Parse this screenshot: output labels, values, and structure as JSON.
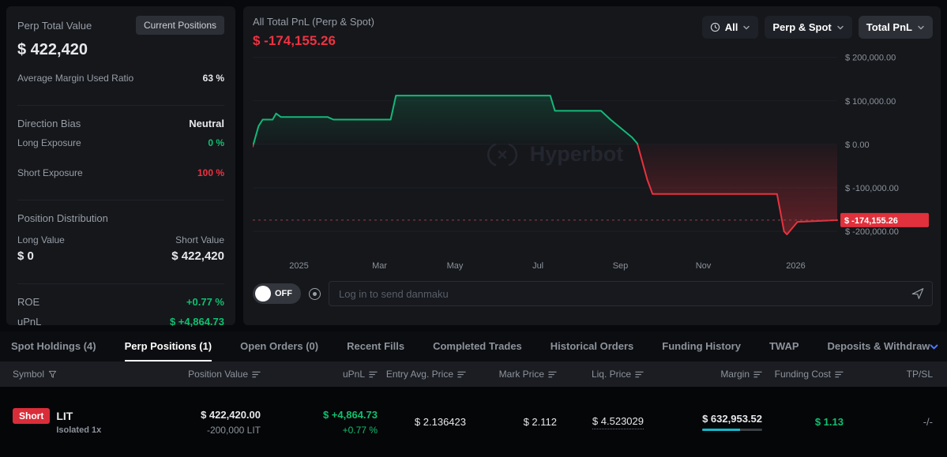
{
  "colors": {
    "accent_cyan": "#15b8ca",
    "negative_red": "#ef3241",
    "positive_green": "#0fc06f",
    "badge_red": "#d92d3a",
    "tabs_chevron_blue": "#4d7cfe"
  },
  "left_panel": {
    "title": "Perp Total Value",
    "current_positions_button": "Current Positions",
    "total_value": "$ 422,420",
    "avg_margin_label": "Average Margin Used Ratio",
    "avg_margin_value": "63 %",
    "avg_margin_pct": 63,
    "direction_bias_label": "Direction Bias",
    "direction_bias_value": "Neutral",
    "long_exposure_label": "Long Exposure",
    "long_exposure_value": "0 %",
    "long_exposure_pct": 0,
    "short_exposure_label": "Short Exposure",
    "short_exposure_value": "100 %",
    "short_exposure_pct": 100,
    "position_distribution_label": "Position Distribution",
    "long_value_label": "Long Value",
    "short_value_label": "Short Value",
    "long_value": "$ 0",
    "short_value": "$ 422,420",
    "distribution_short_pct": 100,
    "roe_label": "ROE",
    "roe_value": "+0.77 %",
    "upnl_label": "uPnL",
    "upnl_value": "$ +4,864.73"
  },
  "chart_panel": {
    "title": "All Total PnL (Perp & Spot)",
    "pnl_value": "$ -174,155.26",
    "controls": {
      "time": "All",
      "scope": "Perp & Spot",
      "metric": "Total PnL"
    },
    "watermark": "Hyperbot",
    "danmaku_toggle": "OFF",
    "danmaku_placeholder": "Log in to send danmaku"
  },
  "chart_data": {
    "type": "area",
    "title": "All Total PnL (Perp & Spot)",
    "legend": false,
    "grid": true,
    "current_value": -174155.26,
    "current_label": "$ -174,155.26",
    "ylim": [
      -245000,
      212000
    ],
    "y_ticks": [
      {
        "v": 200000,
        "label": "$ 200,000.00"
      },
      {
        "v": 100000,
        "label": "$ 100,000.00"
      },
      {
        "v": 0,
        "label": "$ 0.00"
      },
      {
        "v": -100000,
        "label": "$ -100,000.00"
      },
      {
        "v": -200000,
        "label": "$ -200,000.00"
      }
    ],
    "x_ticks": [
      {
        "f": 0.079,
        "label": "2025"
      },
      {
        "f": 0.217,
        "label": "Mar"
      },
      {
        "f": 0.346,
        "label": "May"
      },
      {
        "f": 0.488,
        "label": "Jul"
      },
      {
        "f": 0.629,
        "label": "Sep"
      },
      {
        "f": 0.771,
        "label": "Nov"
      },
      {
        "f": 0.929,
        "label": "2026"
      }
    ],
    "points": [
      [
        0.0,
        -5000
      ],
      [
        0.01,
        42000
      ],
      [
        0.017,
        57000
      ],
      [
        0.034,
        57000
      ],
      [
        0.04,
        71000
      ],
      [
        0.048,
        63000
      ],
      [
        0.128,
        63000
      ],
      [
        0.138,
        57000
      ],
      [
        0.236,
        57000
      ],
      [
        0.245,
        112000
      ],
      [
        0.509,
        112000
      ],
      [
        0.517,
        77000
      ],
      [
        0.596,
        77000
      ],
      [
        0.612,
        57000
      ],
      [
        0.649,
        16000
      ],
      [
        0.658,
        2000
      ],
      [
        0.675,
        -81000
      ],
      [
        0.684,
        -114000
      ],
      [
        0.897,
        -114000
      ],
      [
        0.909,
        -200000
      ],
      [
        0.914,
        -207000
      ],
      [
        0.932,
        -178000
      ],
      [
        1.0,
        -174155.26
      ]
    ],
    "colors": {
      "line_pos": "#14b877",
      "line_neg": "#e8323e"
    }
  },
  "tabs": {
    "active_index": 1,
    "items": [
      {
        "label": "Spot Holdings (4)"
      },
      {
        "label": "Perp Positions (1)"
      },
      {
        "label": "Open Orders (0)"
      },
      {
        "label": "Recent Fills"
      },
      {
        "label": "Completed Trades"
      },
      {
        "label": "Historical Orders"
      },
      {
        "label": "Funding History"
      },
      {
        "label": "TWAP"
      },
      {
        "label": "Deposits & Withdraw"
      }
    ]
  },
  "positions_table": {
    "columns": [
      {
        "label": "Symbol"
      },
      {
        "label": "Position Value"
      },
      {
        "label": "uPnL"
      },
      {
        "label": "Entry Avg. Price"
      },
      {
        "label": "Mark Price"
      },
      {
        "label": "Liq. Price"
      },
      {
        "label": "Margin"
      },
      {
        "label": "Funding Cost"
      },
      {
        "label": "TP/SL"
      }
    ],
    "row": {
      "side": "Short",
      "symbol": "LIT",
      "leverage": "Isolated 1x",
      "position_value": "$ 422,420.00",
      "position_size": "-200,000 LIT",
      "upnl": "$ +4,864.73",
      "upnl_pct": "+0.77 %",
      "entry_price": "$ 2.136423",
      "mark_price": "$ 2.112",
      "liq_price": "$ 4.523029",
      "margin": "$ 632,953.52",
      "margin_bar_pct": 63,
      "funding_cost": "$ 1.13",
      "tpsl": "-/-"
    }
  }
}
